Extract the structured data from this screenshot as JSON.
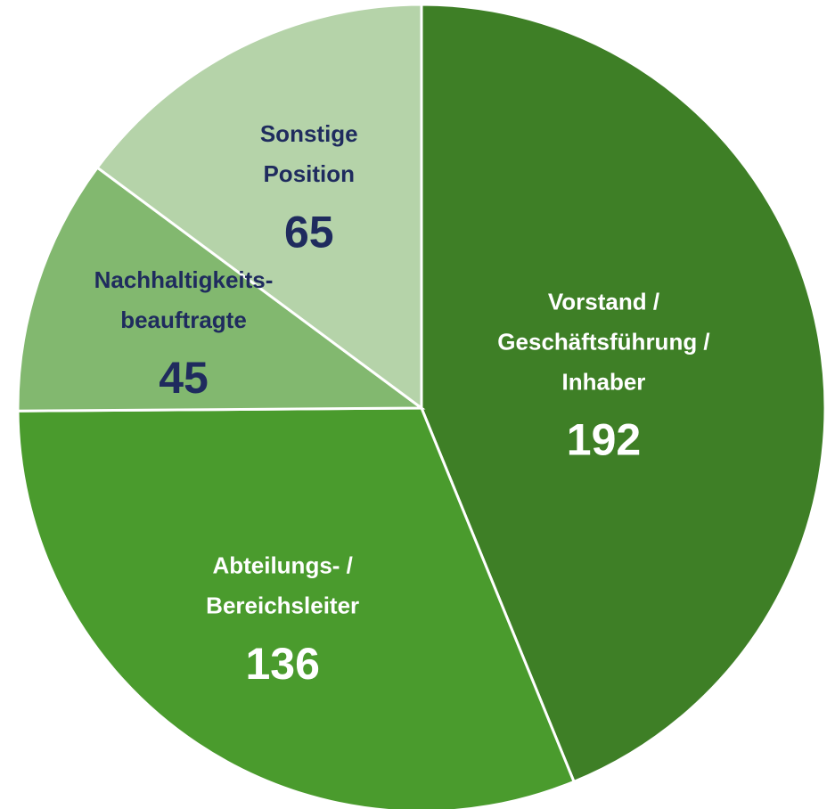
{
  "chart_data": {
    "type": "pie",
    "categories": [
      "Vorstand /\nGeschäftsführung /\nInhaber",
      "Abteilungs- /\nBereichsleiter",
      "Nachhaltigkeits-\nbeauftragte",
      "Sonstige\nPosition"
    ],
    "values": [
      192,
      136,
      45,
      65
    ],
    "colors": [
      "#3e7f26",
      "#4a9b2d",
      "#82b86f",
      "#b5d3a9"
    ],
    "label_colors": [
      "#ffffff",
      "#ffffff",
      "#1f2b5e",
      "#1f2b5e"
    ]
  }
}
